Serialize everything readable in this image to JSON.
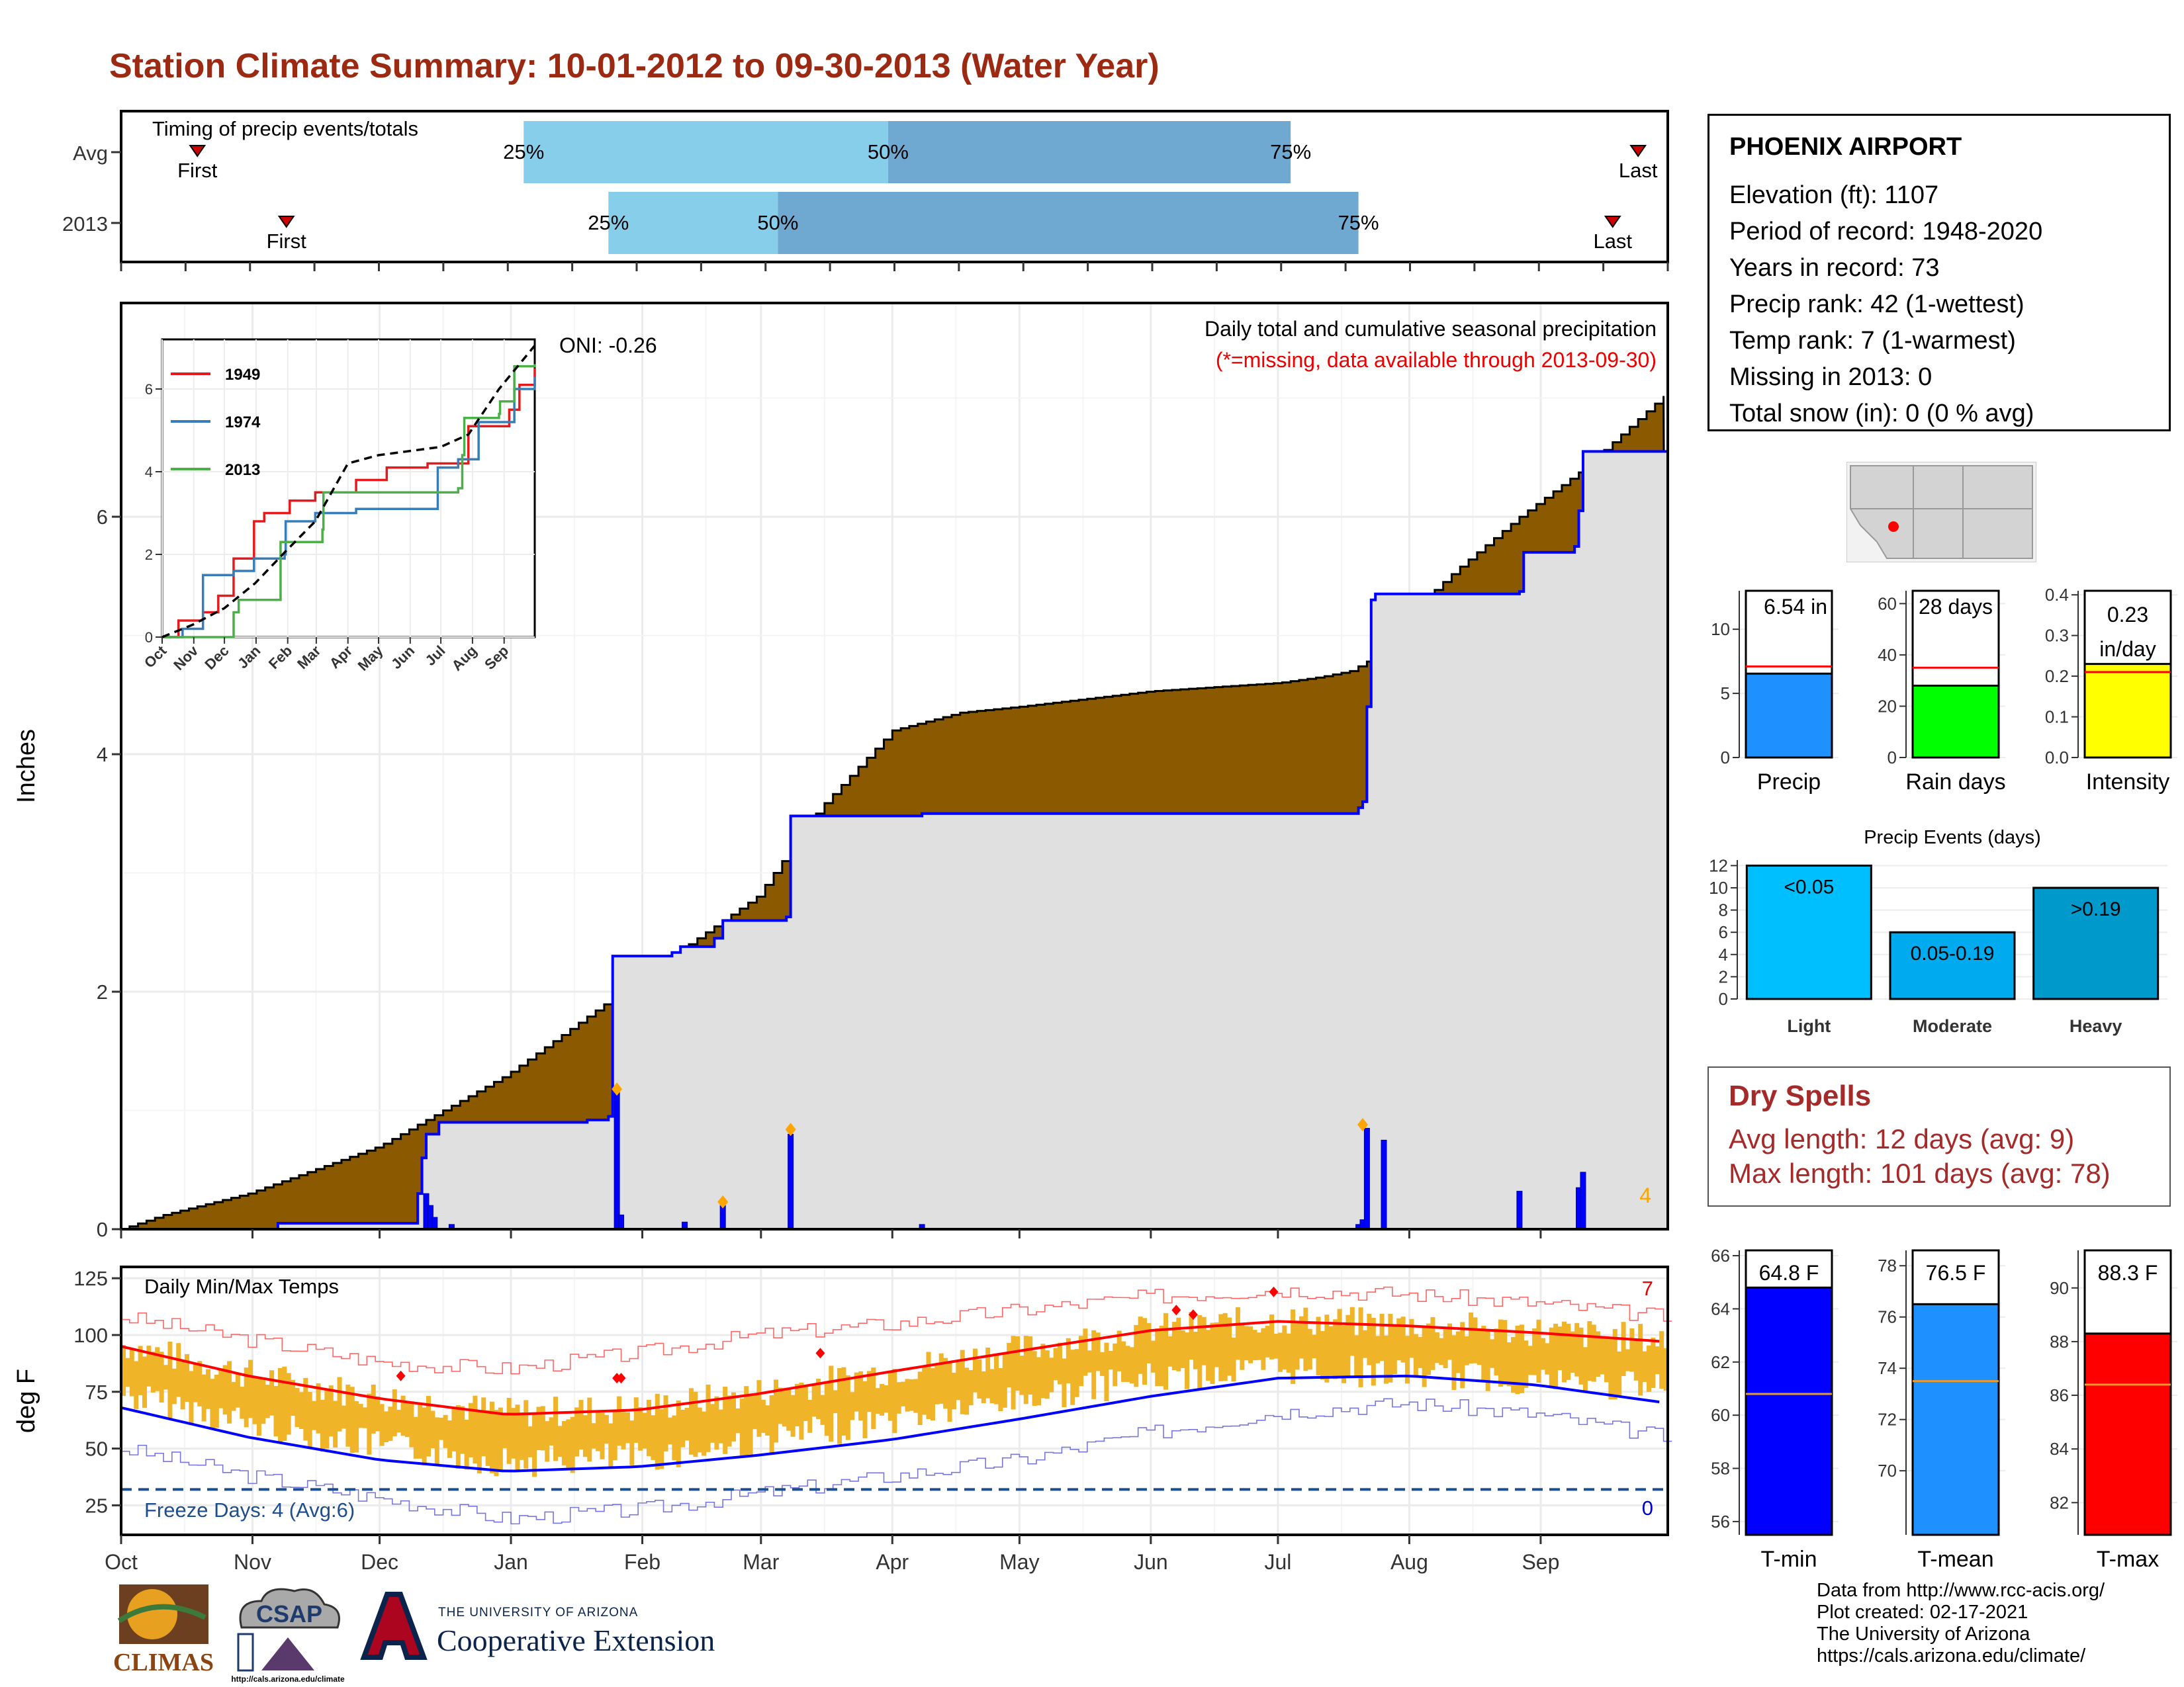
{
  "title": "Station Climate Summary: 10-01-2012 to 09-30-2013 (Water Year)",
  "colors": {
    "title": "#9c2a12",
    "brown": "#8b5a00",
    "blue": "#0000ff",
    "light_gray": "#e0e0e0",
    "orange": "#f0b429",
    "red": "#ff0000",
    "light_blue_bar": "#87ceeb",
    "mid_blue_bar": "#6fa8d0",
    "dry_red": "#a52a2a"
  },
  "months": [
    "Oct",
    "Nov",
    "Dec",
    "Jan",
    "Feb",
    "Mar",
    "Apr",
    "May",
    "Jun",
    "Jul",
    "Aug",
    "Sep"
  ],
  "timing_panel": {
    "label": "Timing of precip events/totals",
    "rows": [
      {
        "name": "Avg",
        "first_label": "First",
        "last_label": "Last",
        "p25": "25%",
        "p50": "50%",
        "p75": "75%",
        "first_day": 18,
        "p25_day": 95,
        "p50_day": 181,
        "p75_day": 276,
        "last_day": 358
      },
      {
        "name": "2013",
        "first_label": "First",
        "last_label": "Last",
        "p25": "25%",
        "p50": "50%",
        "p75": "75%",
        "first_day": 39,
        "p25_day": 115,
        "p50_day": 155,
        "p75_day": 292,
        "last_day": 352
      }
    ]
  },
  "main_panel": {
    "ylabel": "Inches",
    "oni": "ONI: -0.26",
    "legend_title": "Daily total and cumulative seasonal precipitation",
    "legend_note": "(*=missing, data available through 2013-09-30)",
    "corner_count": "4",
    "yticks": [
      "0",
      "2",
      "4",
      "6"
    ],
    "ylim": [
      0,
      7.8
    ],
    "avg_cumulative": [
      [
        0,
        0
      ],
      [
        10,
        0.12
      ],
      [
        30,
        0.3
      ],
      [
        61,
        0.7
      ],
      [
        91,
        1.3
      ],
      [
        122,
        2.1
      ],
      [
        150,
        2.8
      ],
      [
        165,
        3.55
      ],
      [
        182,
        4.2
      ],
      [
        198,
        4.35
      ],
      [
        212,
        4.4
      ],
      [
        243,
        4.53
      ],
      [
        273,
        4.6
      ],
      [
        283,
        4.65
      ],
      [
        290,
        4.7
      ],
      [
        300,
        4.9
      ],
      [
        306,
        5.25
      ],
      [
        315,
        5.55
      ],
      [
        330,
        6.0
      ],
      [
        345,
        6.4
      ],
      [
        365,
        7.05
      ]
    ],
    "cumulative_2013": [
      [
        0,
        0
      ],
      [
        37,
        0.05
      ],
      [
        69,
        0.05
      ],
      [
        70,
        0.3
      ],
      [
        71,
        0.6
      ],
      [
        72,
        0.8
      ],
      [
        75,
        0.9
      ],
      [
        110,
        0.92
      ],
      [
        115,
        0.95
      ],
      [
        116,
        2.3
      ],
      [
        130,
        2.33
      ],
      [
        132,
        2.38
      ],
      [
        140,
        2.45
      ],
      [
        142,
        2.6
      ],
      [
        157,
        2.63
      ],
      [
        158,
        3.48
      ],
      [
        189,
        3.5
      ],
      [
        292,
        3.55
      ],
      [
        293,
        3.6
      ],
      [
        294,
        4.4
      ],
      [
        295,
        5.3
      ],
      [
        296,
        5.35
      ],
      [
        330,
        5.37
      ],
      [
        331,
        5.7
      ],
      [
        343,
        5.75
      ],
      [
        344,
        6.05
      ],
      [
        345,
        6.55
      ],
      [
        365,
        6.55
      ]
    ],
    "daily_bars": [
      [
        72,
        0.3
      ],
      [
        73,
        0.2
      ],
      [
        74,
        0.1
      ],
      [
        78,
        0.04
      ],
      [
        117,
        1.15
      ],
      [
        118,
        0.12
      ],
      [
        133,
        0.06
      ],
      [
        142,
        0.2
      ],
      [
        158,
        0.8
      ],
      [
        189,
        0.04
      ],
      [
        292,
        0.04
      ],
      [
        293,
        0.08
      ],
      [
        294,
        0.85
      ],
      [
        298,
        0.75
      ],
      [
        330,
        0.32
      ],
      [
        344,
        0.35
      ],
      [
        345,
        0.48
      ]
    ],
    "max_markers": [
      [
        117,
        1.18
      ],
      [
        142,
        0.23
      ],
      [
        158,
        0.84
      ],
      [
        293,
        0.88
      ]
    ]
  },
  "inset": {
    "xticks": [
      "Oct",
      "Nov",
      "Dec",
      "Jan",
      "Feb",
      "Mar",
      "Apr",
      "May",
      "Jun",
      "Jul",
      "Aug",
      "Sep"
    ],
    "yticks": [
      "0",
      "2",
      "4",
      "6"
    ],
    "ylim": [
      0,
      7.2
    ],
    "series": [
      {
        "name": "1949",
        "color": "#e41a1c",
        "values": [
          [
            0,
            0
          ],
          [
            15,
            0
          ],
          [
            16,
            0.4
          ],
          [
            40,
            0.6
          ],
          [
            55,
            1.0
          ],
          [
            70,
            1.9
          ],
          [
            90,
            2.8
          ],
          [
            100,
            3.0
          ],
          [
            125,
            3.3
          ],
          [
            150,
            3.5
          ],
          [
            190,
            3.8
          ],
          [
            220,
            4.1
          ],
          [
            260,
            4.2
          ],
          [
            300,
            5.1
          ],
          [
            340,
            5.5
          ],
          [
            350,
            6.1
          ],
          [
            365,
            6.5
          ]
        ]
      },
      {
        "name": "1974",
        "color": "#377eb8",
        "values": [
          [
            0,
            0
          ],
          [
            20,
            0.2
          ],
          [
            40,
            1.5
          ],
          [
            70,
            1.6
          ],
          [
            90,
            1.9
          ],
          [
            120,
            2.0
          ],
          [
            121,
            2.8
          ],
          [
            150,
            3.0
          ],
          [
            190,
            3.1
          ],
          [
            250,
            3.1
          ],
          [
            270,
            4.1
          ],
          [
            290,
            4.3
          ],
          [
            310,
            5.2
          ],
          [
            345,
            6.0
          ],
          [
            365,
            6.3
          ]
        ]
      },
      {
        "name": "2013",
        "color": "#4daf4a",
        "values": [
          [
            0,
            0
          ],
          [
            70,
            0.6
          ],
          [
            75,
            0.9
          ],
          [
            116,
            2.3
          ],
          [
            157,
            2.6
          ],
          [
            158,
            3.5
          ],
          [
            290,
            3.6
          ],
          [
            294,
            4.4
          ],
          [
            296,
            5.3
          ],
          [
            330,
            5.4
          ],
          [
            331,
            5.7
          ],
          [
            345,
            6.55
          ],
          [
            365,
            6.6
          ]
        ]
      }
    ],
    "avg_dashed": [
      [
        0,
        0
      ],
      [
        30,
        0.3
      ],
      [
        61,
        0.7
      ],
      [
        91,
        1.3
      ],
      [
        122,
        2.1
      ],
      [
        150,
        2.8
      ],
      [
        182,
        4.2
      ],
      [
        212,
        4.4
      ],
      [
        273,
        4.6
      ],
      [
        300,
        4.9
      ],
      [
        330,
        6.0
      ],
      [
        365,
        7.05
      ]
    ]
  },
  "temp_panel": {
    "label": "Daily Min/Max Temps",
    "ylabel": "deg F",
    "yticks": [
      "25",
      "50",
      "75",
      "100",
      "125"
    ],
    "ylim": [
      12,
      130
    ],
    "freeze_label": "Freeze Days: 4 (Avg:6)",
    "freeze_line": 32,
    "red_count": "7",
    "blue_count": "0",
    "avg_max": [
      [
        0,
        95
      ],
      [
        30,
        82
      ],
      [
        61,
        72
      ],
      [
        91,
        65
      ],
      [
        122,
        67
      ],
      [
        150,
        74
      ],
      [
        182,
        84
      ],
      [
        212,
        93
      ],
      [
        243,
        102
      ],
      [
        273,
        106
      ],
      [
        304,
        104
      ],
      [
        334,
        101
      ],
      [
        365,
        97
      ]
    ],
    "avg_min": [
      [
        0,
        68
      ],
      [
        30,
        55
      ],
      [
        61,
        45
      ],
      [
        91,
        40
      ],
      [
        122,
        42
      ],
      [
        150,
        47
      ],
      [
        182,
        54
      ],
      [
        212,
        63
      ],
      [
        243,
        73
      ],
      [
        273,
        81
      ],
      [
        304,
        82
      ],
      [
        334,
        78
      ],
      [
        365,
        70
      ]
    ],
    "record_max": [
      [
        0,
        108
      ],
      [
        30,
        98
      ],
      [
        61,
        88
      ],
      [
        91,
        85
      ],
      [
        122,
        92
      ],
      [
        150,
        100
      ],
      [
        182,
        105
      ],
      [
        212,
        111
      ],
      [
        243,
        117
      ],
      [
        273,
        120
      ],
      [
        304,
        118
      ],
      [
        334,
        114
      ],
      [
        365,
        108
      ]
    ],
    "record_min": [
      [
        0,
        50
      ],
      [
        30,
        38
      ],
      [
        61,
        28
      ],
      [
        91,
        19
      ],
      [
        122,
        23
      ],
      [
        150,
        30
      ],
      [
        182,
        38
      ],
      [
        212,
        45
      ],
      [
        243,
        57
      ],
      [
        273,
        66
      ],
      [
        304,
        70
      ],
      [
        334,
        65
      ],
      [
        365,
        55
      ]
    ],
    "record_markers": [
      [
        66,
        82
      ],
      [
        117,
        81
      ],
      [
        118,
        81
      ],
      [
        165,
        92
      ],
      [
        249,
        111
      ],
      [
        253,
        109
      ],
      [
        272,
        119
      ]
    ]
  },
  "stats_bars": [
    {
      "name": "Precip",
      "value_label": "6.54 in",
      "value": 6.54,
      "avg": 7.1,
      "ylim": [
        0,
        13
      ],
      "yticks": [
        0,
        5,
        10
      ],
      "color": "#1e90ff"
    },
    {
      "name": "Rain days",
      "value_label": "28 days",
      "value": 28,
      "avg": 35,
      "ylim": [
        0,
        65
      ],
      "yticks": [
        0,
        20,
        40,
        60
      ],
      "color": "#00ff00"
    },
    {
      "name": "Intensity",
      "value_label": "0.23 in/day",
      "value": 0.23,
      "avg": 0.21,
      "ylim": [
        0,
        0.41
      ],
      "yticks": [
        0.0,
        0.1,
        0.2,
        0.3,
        0.4
      ],
      "color": "#ffff00"
    }
  ],
  "events_chart": {
    "title": "Precip Events (days)",
    "categories": [
      "Light",
      "Moderate",
      "Heavy"
    ],
    "labels": [
      "<0.05",
      "0.05-0.19",
      ">0.19"
    ],
    "values": [
      12,
      6,
      10
    ],
    "ylim": [
      0,
      12.5
    ],
    "yticks": [
      0,
      2,
      4,
      6,
      8,
      10,
      12
    ],
    "colors": [
      "#00bfff",
      "#00aaee",
      "#0099cc"
    ]
  },
  "temp_bars": [
    {
      "name": "T-min",
      "value_label": "64.8 F",
      "value": 64.8,
      "avg": 60.8,
      "ylim": [
        55.5,
        66.2
      ],
      "yticks": [
        56,
        58,
        60,
        62,
        64,
        66
      ],
      "color": "#0000ff"
    },
    {
      "name": "T-mean",
      "value_label": "76.5 F",
      "value": 76.5,
      "avg": 73.5,
      "ylim": [
        67.5,
        78.6
      ],
      "yticks": [
        70,
        72,
        74,
        76,
        78
      ],
      "color": "#1e90ff"
    },
    {
      "name": "T-max",
      "value_label": "88.3 F",
      "value": 88.3,
      "avg": 86.4,
      "ylim": [
        80.8,
        91.4
      ],
      "yticks": [
        82,
        84,
        86,
        88,
        90
      ],
      "color": "#ff0000"
    }
  ],
  "station": {
    "name": "PHOENIX AIRPORT",
    "elevation": "Elevation (ft): 1107",
    "period": "Period of record: 1948-2020",
    "years": "Years in record: 73",
    "precip_rank": "Precip rank: 42 (1-wettest)",
    "temp_rank": "Temp rank: 7 (1-warmest)",
    "missing": "Missing in 2013: 0",
    "snow": "Total snow (in): 0 (0 % avg)"
  },
  "dry_spells": {
    "title": "Dry Spells",
    "avg_length": "Avg length: 12 days (avg: 9)",
    "max_length": "Max length: 101 days (avg: 78)"
  },
  "credits": {
    "line1": "Data from http://www.rcc-acis.org/",
    "line2": "Plot created: 02-17-2021",
    "line3": "The University of Arizona",
    "line4": "https://cals.arizona.edu/climate/"
  },
  "logos": {
    "climas": "CLIMAS",
    "csap": "CSAP",
    "csap_url": "http://cals.arizona.edu/climate",
    "ua_small": "THE UNIVERSITY OF ARIZONA",
    "ua_big": "Cooperative Extension"
  }
}
